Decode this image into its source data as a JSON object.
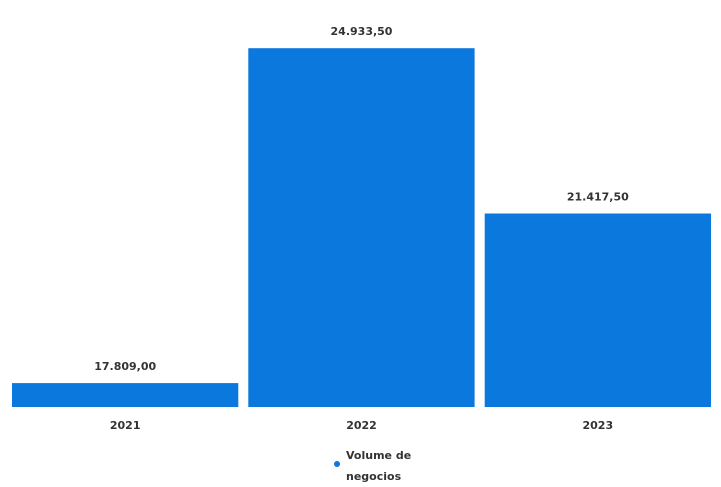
{
  "chart_data": {
    "type": "bar",
    "categories": [
      "2021",
      "2022",
      "2023"
    ],
    "series": [
      {
        "name": "Volume de negocios",
        "values": [
          17809.0,
          24933.5,
          21417.5
        ],
        "labels": [
          "17.809,00",
          "24.933,50",
          "21.417,50"
        ]
      }
    ],
    "ylim": [
      17300,
      25300
    ],
    "grid": false,
    "legend": "bottom-center"
  },
  "colors": {
    "bar": "#0b78dd",
    "legend_marker": "#0b78dd"
  },
  "legend": {
    "line1": "Volume de",
    "line2": "negocios"
  }
}
